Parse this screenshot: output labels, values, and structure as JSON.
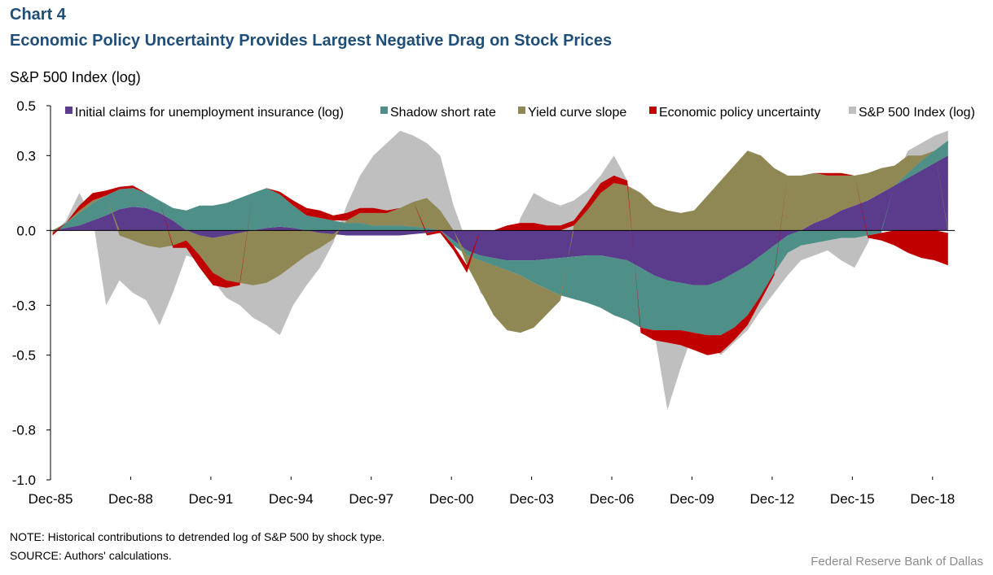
{
  "header": {
    "chart_number": "Chart 4",
    "title": "Economic Policy Uncertainty Provides Largest Negative Drag on Stock Prices"
  },
  "footer": {
    "note": "NOTE:  Historical contributions to detrended log of S&P 500 by shock type.",
    "source": "SOURCE:  Authors' calculations.",
    "credit": "Federal Reserve  Bank of Dallas"
  },
  "colors": {
    "claims": "#5b3b8c",
    "shadow": "#4e8f88",
    "yield": "#8f8754",
    "epu": "#c00000",
    "sp500": "#bfbfbf"
  },
  "chart_data": {
    "type": "area",
    "ylabel": "S&P 500 Index (log)",
    "xlabel": "",
    "ylim": [
      -1.0,
      0.5
    ],
    "yticks": [
      0.5,
      0.3,
      0.0,
      -0.3,
      -0.5,
      -0.8,
      -1.0
    ],
    "ytick_labels": [
      "0.5",
      "0.3",
      "0.0",
      "-0.3",
      "-0.5",
      "-0.8",
      "-1.0"
    ],
    "xlim": [
      1985.92,
      2019.75
    ],
    "xticks": [
      1985.92,
      1988.92,
      1991.92,
      1994.92,
      1997.92,
      2000.92,
      2003.92,
      2006.92,
      2009.92,
      2012.92,
      2015.92,
      2018.92
    ],
    "xtick_labels": [
      "Dec-85",
      "Dec-88",
      "Dec-91",
      "Dec-94",
      "Dec-97",
      "Dec-00",
      "Dec-03",
      "Dec-06",
      "Dec-09",
      "Dec-12",
      "Dec-15",
      "Dec-18"
    ],
    "legend_position": "top",
    "x": [
      1986,
      1986.5,
      1987,
      1987.5,
      1988,
      1988.5,
      1989,
      1989.5,
      1990,
      1990.5,
      1991,
      1991.5,
      1992,
      1992.5,
      1993,
      1993.5,
      1994,
      1994.5,
      1995,
      1995.5,
      1996,
      1996.5,
      1997,
      1997.5,
      1998,
      1998.5,
      1999,
      1999.5,
      2000,
      2000.5,
      2001,
      2001.5,
      2002,
      2002.5,
      2003,
      2003.5,
      2004,
      2004.5,
      2005,
      2005.5,
      2006,
      2006.5,
      2007,
      2007.5,
      2008,
      2008.5,
      2009,
      2009.5,
      2010,
      2010.5,
      2011,
      2011.5,
      2012,
      2012.5,
      2013,
      2013.5,
      2014,
      2014.5,
      2015,
      2015.5,
      2016,
      2016.5,
      2017,
      2017.5,
      2018,
      2018.5,
      2019,
      2019.5
    ],
    "series": [
      {
        "name": "Initial claims for unemployment insurance (log)",
        "color_key": "claims",
        "values": [
          0.0,
          0.01,
          0.02,
          0.04,
          0.06,
          0.085,
          0.095,
          0.09,
          0.07,
          0.04,
          0.0,
          -0.02,
          -0.03,
          -0.02,
          -0.01,
          0.0,
          0.01,
          0.015,
          0.01,
          0.0,
          -0.01,
          -0.015,
          -0.02,
          -0.02,
          -0.02,
          -0.02,
          -0.02,
          -0.015,
          -0.01,
          0.0,
          -0.04,
          -0.08,
          -0.1,
          -0.11,
          -0.12,
          -0.12,
          -0.12,
          -0.115,
          -0.11,
          -0.105,
          -0.1,
          -0.1,
          -0.11,
          -0.12,
          -0.15,
          -0.18,
          -0.2,
          -0.21,
          -0.22,
          -0.22,
          -0.2,
          -0.17,
          -0.14,
          -0.1,
          -0.06,
          -0.02,
          0.0,
          0.03,
          0.05,
          0.08,
          0.1,
          0.12,
          0.15,
          0.18,
          0.21,
          0.24,
          0.27,
          0.3
        ]
      },
      {
        "name": "Shadow short rate",
        "color_key": "shadow",
        "values": [
          0.0,
          0.02,
          0.05,
          0.07,
          0.08,
          0.08,
          0.075,
          0.06,
          0.05,
          0.05,
          0.08,
          0.1,
          0.1,
          0.11,
          0.13,
          0.15,
          0.16,
          0.13,
          0.09,
          0.06,
          0.05,
          0.04,
          0.03,
          0.03,
          0.02,
          0.02,
          0.02,
          0.015,
          0.01,
          0.0,
          -0.02,
          -0.02,
          -0.02,
          -0.03,
          -0.04,
          -0.06,
          -0.09,
          -0.12,
          -0.15,
          -0.17,
          -0.19,
          -0.21,
          -0.23,
          -0.24,
          -0.24,
          -0.22,
          -0.2,
          -0.19,
          -0.19,
          -0.2,
          -0.22,
          -0.22,
          -0.2,
          -0.16,
          -0.11,
          -0.07,
          -0.06,
          -0.05,
          -0.04,
          -0.03,
          -0.03,
          -0.02,
          -0.01,
          0.0,
          0.02,
          0.04,
          0.05,
          0.06
        ]
      },
      {
        "name": "Yield curve slope",
        "color_key": "yield",
        "values": [
          -0.01,
          0.0,
          0.01,
          0.01,
          0.0,
          -0.02,
          -0.04,
          -0.06,
          -0.07,
          -0.06,
          -0.04,
          -0.08,
          -0.14,
          -0.18,
          -0.2,
          -0.22,
          -0.21,
          -0.18,
          -0.14,
          -0.1,
          -0.06,
          -0.02,
          0.01,
          0.04,
          0.05,
          0.05,
          0.07,
          0.1,
          0.12,
          0.08,
          0.0,
          -0.04,
          -0.12,
          -0.2,
          -0.24,
          -0.23,
          -0.18,
          -0.1,
          -0.02,
          0.02,
          0.08,
          0.15,
          0.19,
          0.18,
          0.15,
          0.1,
          0.08,
          0.07,
          0.08,
          0.14,
          0.2,
          0.26,
          0.32,
          0.3,
          0.25,
          0.22,
          0.22,
          0.2,
          0.17,
          0.14,
          0.12,
          0.11,
          0.1,
          0.08,
          0.07,
          0.02,
          0.0,
          -0.01
        ]
      },
      {
        "name": "Economic policy uncertainty",
        "color_key": "epu",
        "values": [
          -0.01,
          0.0,
          0.02,
          0.03,
          0.02,
          0.01,
          0.01,
          0.0,
          0.0,
          -0.01,
          -0.03,
          -0.05,
          -0.05,
          -0.03,
          -0.01,
          0.0,
          0.0,
          0.01,
          0.02,
          0.03,
          0.03,
          0.02,
          0.03,
          0.02,
          0.02,
          0.01,
          0.0,
          0.0,
          -0.01,
          -0.01,
          -0.02,
          -0.03,
          0.0,
          0.0,
          0.02,
          0.03,
          0.03,
          0.02,
          0.02,
          0.02,
          0.03,
          0.04,
          0.03,
          0.02,
          -0.02,
          -0.04,
          -0.05,
          -0.06,
          -0.07,
          -0.08,
          -0.07,
          -0.05,
          -0.04,
          -0.02,
          -0.01,
          0.0,
          0.0,
          0.0,
          0.01,
          0.01,
          0.0,
          -0.01,
          -0.03,
          -0.06,
          -0.09,
          -0.11,
          -0.12,
          -0.13
        ]
      },
      {
        "name": "S&P 500 Index (log)",
        "color_key": "sp500",
        "values": [
          -0.02,
          0.04,
          0.15,
          0.05,
          -0.3,
          -0.2,
          -0.25,
          -0.28,
          -0.38,
          -0.25,
          -0.1,
          -0.12,
          -0.2,
          -0.27,
          -0.3,
          -0.35,
          -0.38,
          -0.42,
          -0.3,
          -0.22,
          -0.15,
          -0.05,
          0.1,
          0.22,
          0.3,
          0.35,
          0.4,
          0.38,
          0.35,
          0.3,
          0.1,
          -0.05,
          -0.25,
          -0.3,
          -0.15,
          0.05,
          0.15,
          0.12,
          0.1,
          0.12,
          0.16,
          0.22,
          0.3,
          0.2,
          -0.1,
          -0.4,
          -0.72,
          -0.55,
          -0.4,
          -0.45,
          -0.5,
          -0.45,
          -0.4,
          -0.32,
          -0.25,
          -0.18,
          -0.12,
          -0.1,
          -0.08,
          -0.12,
          -0.15,
          -0.05,
          0.1,
          0.2,
          0.32,
          0.35,
          0.38,
          0.4
        ]
      }
    ]
  }
}
